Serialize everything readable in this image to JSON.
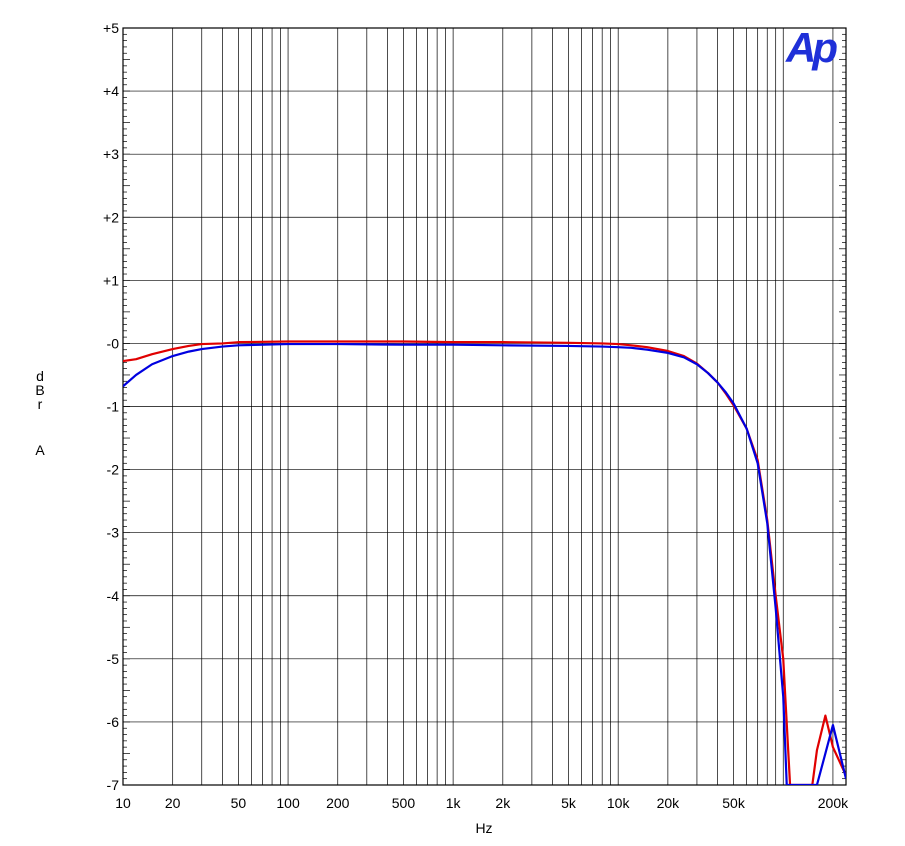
{
  "logo_text": "Ap",
  "chart_data": {
    "type": "line",
    "xlabel": "Hz",
    "ylabel": [
      "d",
      "B",
      "r",
      "",
      "A"
    ],
    "x_scale": "log",
    "xlim": [
      10,
      240000
    ],
    "ylim": [
      -7,
      5
    ],
    "grid": true,
    "x_ticks": [
      {
        "v": 10,
        "label": "10"
      },
      {
        "v": 20,
        "label": "20"
      },
      {
        "v": 50,
        "label": "50"
      },
      {
        "v": 100,
        "label": "100"
      },
      {
        "v": 200,
        "label": "200"
      },
      {
        "v": 500,
        "label": "500"
      },
      {
        "v": 1000,
        "label": "1k"
      },
      {
        "v": 2000,
        "label": "2k"
      },
      {
        "v": 5000,
        "label": "5k"
      },
      {
        "v": 10000,
        "label": "10k"
      },
      {
        "v": 20000,
        "label": "20k"
      },
      {
        "v": 50000,
        "label": "50k"
      },
      {
        "v": 200000,
        "label": "200k"
      }
    ],
    "y_ticks": [
      {
        "v": 5,
        "label": "+5"
      },
      {
        "v": 4,
        "label": "+4"
      },
      {
        "v": 3,
        "label": "+3"
      },
      {
        "v": 2,
        "label": "+2"
      },
      {
        "v": 1,
        "label": "+1"
      },
      {
        "v": 0,
        "label": "-0"
      },
      {
        "v": -1,
        "label": "-1"
      },
      {
        "v": -2,
        "label": "-2"
      },
      {
        "v": -3,
        "label": "-3"
      },
      {
        "v": -4,
        "label": "-4"
      },
      {
        "v": -5,
        "label": "-5"
      },
      {
        "v": -6,
        "label": "-6"
      },
      {
        "v": -7,
        "label": "-7"
      }
    ],
    "series": [
      {
        "color": "#e00000",
        "points": [
          [
            10,
            -0.28
          ],
          [
            12,
            -0.25
          ],
          [
            15,
            -0.17
          ],
          [
            20,
            -0.09
          ],
          [
            25,
            -0.04
          ],
          [
            30,
            -0.01
          ],
          [
            40,
            0.0
          ],
          [
            50,
            0.02
          ],
          [
            100,
            0.03
          ],
          [
            200,
            0.03
          ],
          [
            500,
            0.03
          ],
          [
            1000,
            0.02
          ],
          [
            2000,
            0.02
          ],
          [
            5000,
            0.01
          ],
          [
            8000,
            0.0
          ],
          [
            10000,
            -0.01
          ],
          [
            12000,
            -0.03
          ],
          [
            15000,
            -0.06
          ],
          [
            20000,
            -0.12
          ],
          [
            25000,
            -0.2
          ],
          [
            30000,
            -0.32
          ],
          [
            35000,
            -0.47
          ],
          [
            40000,
            -0.62
          ],
          [
            45000,
            -0.8
          ],
          [
            50000,
            -0.98
          ],
          [
            60000,
            -1.35
          ],
          [
            70000,
            -1.85
          ],
          [
            80000,
            -2.8
          ],
          [
            90000,
            -4.0
          ],
          [
            100000,
            -5.0
          ],
          [
            110000,
            -7.0
          ],
          [
            150000,
            -7.0
          ],
          [
            160000,
            -6.45
          ],
          [
            180000,
            -5.9
          ],
          [
            200000,
            -6.4
          ],
          [
            240000,
            -6.85
          ]
        ]
      },
      {
        "color": "#0000e0",
        "points": [
          [
            10,
            -0.68
          ],
          [
            12,
            -0.5
          ],
          [
            15,
            -0.33
          ],
          [
            20,
            -0.2
          ],
          [
            25,
            -0.13
          ],
          [
            30,
            -0.09
          ],
          [
            40,
            -0.05
          ],
          [
            50,
            -0.03
          ],
          [
            100,
            -0.01
          ],
          [
            200,
            -0.01
          ],
          [
            500,
            -0.02
          ],
          [
            1000,
            -0.02
          ],
          [
            2000,
            -0.03
          ],
          [
            5000,
            -0.04
          ],
          [
            8000,
            -0.05
          ],
          [
            10000,
            -0.06
          ],
          [
            12000,
            -0.07
          ],
          [
            15000,
            -0.1
          ],
          [
            20000,
            -0.15
          ],
          [
            25000,
            -0.22
          ],
          [
            30000,
            -0.33
          ],
          [
            35000,
            -0.47
          ],
          [
            40000,
            -0.62
          ],
          [
            45000,
            -0.78
          ],
          [
            50000,
            -0.95
          ],
          [
            60000,
            -1.35
          ],
          [
            70000,
            -1.9
          ],
          [
            80000,
            -2.85
          ],
          [
            90000,
            -4.2
          ],
          [
            100000,
            -5.6
          ],
          [
            105000,
            -7.0
          ],
          [
            160000,
            -7.0
          ],
          [
            180000,
            -6.5
          ],
          [
            200000,
            -6.05
          ],
          [
            240000,
            -6.9
          ]
        ]
      }
    ]
  }
}
